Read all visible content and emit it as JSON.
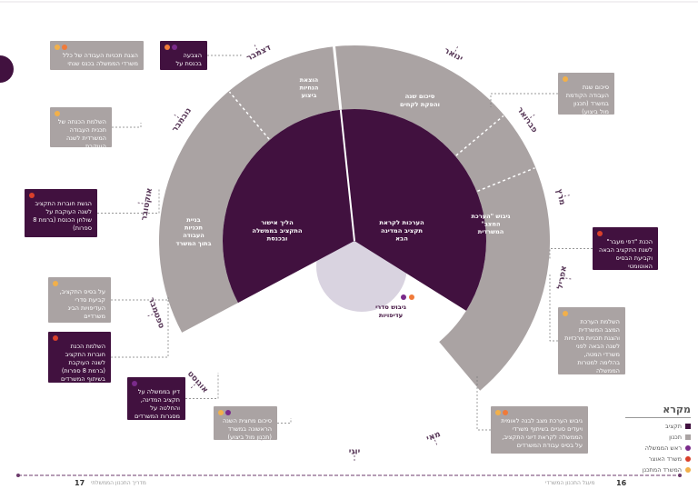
{
  "colors": {
    "dark_purple": "#41113f",
    "outer_grey": "#aaa3a3",
    "center_circle": "#d9d3e0",
    "red_dot": "#d9402b",
    "orange_dot": "#f07a3a",
    "yellow_dot": "#f2b04a",
    "purple_dot": "#7a2a8a",
    "timeline": "#6b3a6b"
  },
  "months": [
    "ינואר",
    "פברואר",
    "מרץ",
    "אפריל",
    "מאי",
    "יוני",
    "יולי",
    "אוגוסט",
    "ספטמבר",
    "אוקטובר",
    "נובמבר",
    "דצמבר"
  ],
  "inner_segments": [
    {
      "label": "הערכות לקראת תקציב המדינה הבא"
    },
    {
      "label": "הליך אישור התקציב בממשלה ובכנסת"
    }
  ],
  "outer_segments": [
    {
      "label": "סיכום שנה והפקת לקחים"
    },
    {
      "label": "גיבוש \"הערכת המצב\" המשרדית"
    },
    {
      "label": "בניית תכניות העבודה בתוך המשרד"
    },
    {
      "label": "הוצאת הנחיות ביצוע"
    }
  ],
  "center": {
    "label": "גיבוש סדרי עדיפויות"
  },
  "boxes": [
    {
      "id": "b-dec-purple",
      "text": "הצבעה בכנסת על תקציב המדינה",
      "style": "purple",
      "dots": [
        "purple",
        "orange"
      ]
    },
    {
      "id": "b-dec-grey",
      "text": "הצגת תכניות העבודה של כלל משרדי הממשלה בכנס שנתי",
      "style": "grey",
      "dots": [
        "orange",
        "yellow"
      ]
    },
    {
      "id": "b-feb",
      "text": "סיכום שנת העבודה הקודמת במשרד (תכנון מול ביצוע) והפקת לקחים",
      "style": "grey",
      "dots": [
        "yellow"
      ]
    },
    {
      "id": "b-nov",
      "text": "השלמת הכנתה של תכנית העבודה המשרדית לשנה העוקבת",
      "style": "grey",
      "dots": [
        "yellow"
      ]
    },
    {
      "id": "b-oct",
      "text": "הגשת חוברות התקציב לשנה העוקבת על שולחן הכנסת (ברמת 8 ספרות)",
      "style": "purple",
      "dots": [
        "red"
      ]
    },
    {
      "id": "b-apr-purple",
      "text": "הכנת \"דפי מעבר\" לשנת התקציב הבאה וקביעת הבסיס האוטומטי",
      "style": "purple",
      "dots": [
        "red"
      ]
    },
    {
      "id": "b-sep-grey",
      "text": "על בסיס התקציב, קביעת סדרי העדיפויות הבינ משרדיים",
      "style": "grey",
      "dots": [
        "yellow"
      ]
    },
    {
      "id": "b-sep-purple",
      "text": "השלמת הכנת חוברות התקציב לשנה העוקבת (ברמת 8 ספרות) בשיתוף המשרדים",
      "style": "purple",
      "dots": [
        "red"
      ]
    },
    {
      "id": "b-apr-grey",
      "text": "השלמת הערכת המצב המשרדית והצגת תכניות מרכזיות לשנה הבאה לפני משרדי המטה, בהלימה למטרות הממשלה",
      "style": "grey",
      "dots": [
        "yellow"
      ]
    },
    {
      "id": "b-aug",
      "text": "דיון בממשלה על תקציב המדינה, והחלטה על מסגרות המשרדים",
      "style": "purple",
      "dots": [
        "purple"
      ]
    },
    {
      "id": "b-jul",
      "text": "סיכום מחצית השנה הראשונה במשרד (תכנון מול ביצוע) והתאמת המשימות",
      "style": "grey",
      "dots": [
        "purple",
        "yellow"
      ]
    },
    {
      "id": "b-may",
      "text": "גיבוש הערכת מצב לבנה לאומית ויעדים סוגיים בשיתוף משרדי הממשלה לקראת דיוני התקציב, על בסיס עבודת המשרדים",
      "style": "grey",
      "dots": [
        "orange",
        "yellow"
      ]
    }
  ],
  "legend": {
    "title": "מקרא",
    "items": [
      {
        "label": "תקציב",
        "kind": "square",
        "color": "#41113f"
      },
      {
        "label": "תכנון",
        "kind": "square",
        "color": "#aaa3a3"
      },
      {
        "label": "ראש הממשלה",
        "kind": "dot",
        "color": "#7a2a8a"
      },
      {
        "label": "משרד האוצר",
        "kind": "dot",
        "color": "#d9402b"
      },
      {
        "label": "המשרד המתכנן",
        "kind": "dot",
        "color": "#f2b04a"
      }
    ]
  },
  "footer": {
    "page_right": "16",
    "page_left": "17",
    "text_right": "מעגל התכנון המשרדי",
    "text_left": "מדריך התכנון הממשלתי"
  }
}
